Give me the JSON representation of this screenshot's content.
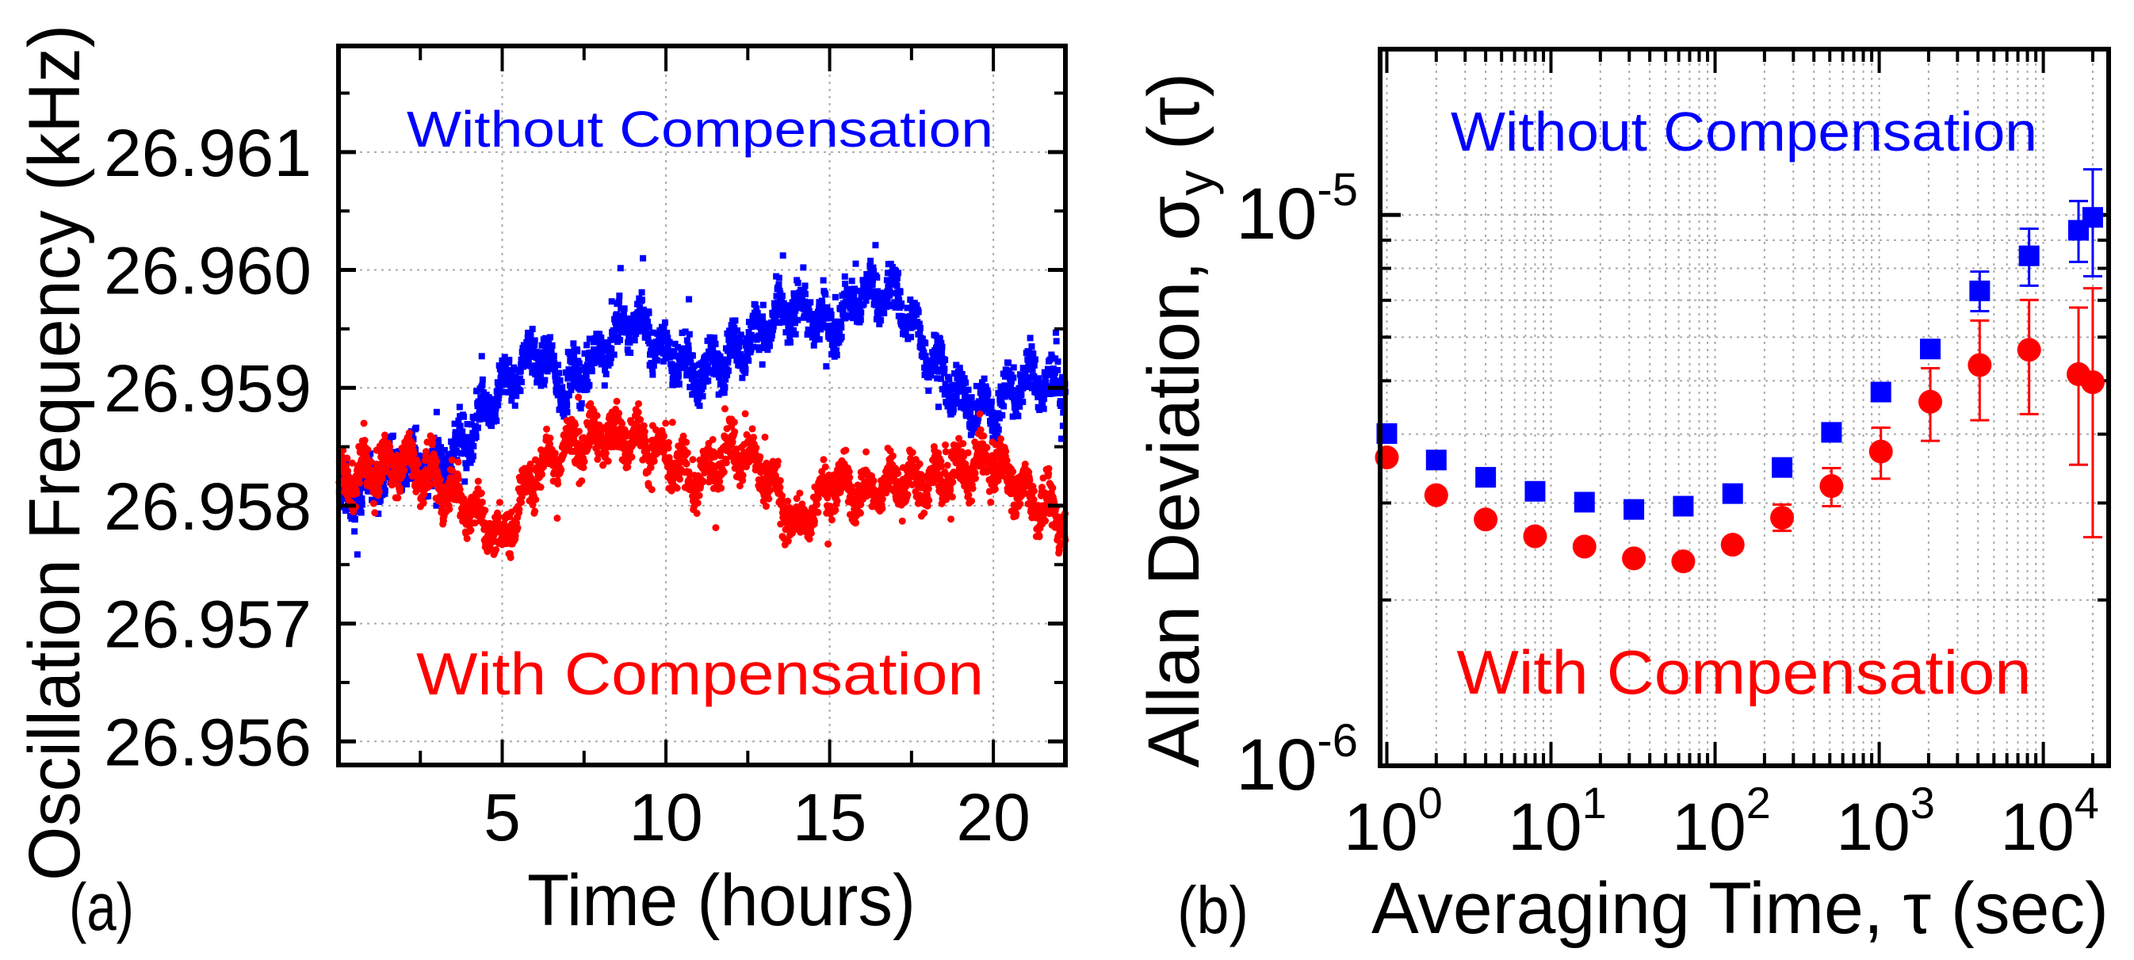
{
  "colors": {
    "without": "#0000ff",
    "with": "#ff0000",
    "axis": "#000000"
  },
  "chart_data": [
    {
      "type": "scatter",
      "panel_label": "(a)",
      "xlabel": "Time (hours)",
      "ylabel": "Oscillation Frequency (kHz)",
      "xlim": [
        0,
        22.2
      ],
      "ylim": [
        26.9558,
        26.9619
      ],
      "xticks": [
        5,
        10,
        15,
        20
      ],
      "xtick_labels": [
        "5",
        "10",
        "15",
        "20"
      ],
      "yticks": [
        26.956,
        26.957,
        26.958,
        26.959,
        26.96,
        26.961
      ],
      "ytick_labels": [
        "26.956",
        "26.957",
        "26.958",
        "26.959",
        "26.960",
        "26.961"
      ],
      "grid": true,
      "annotations": {
        "without": "Without Compensation",
        "with": "With Compensation"
      },
      "noise_amplitude_khz": 0.0004,
      "series": [
        {
          "name": "Without Compensation",
          "marker": "square",
          "hours": [
            0,
            1,
            2,
            3,
            4,
            5,
            6,
            7,
            8,
            9,
            10,
            11,
            12,
            13,
            14,
            15,
            16,
            17,
            18,
            19,
            20,
            21,
            22
          ],
          "mean_khz": [
            26.958,
            26.9582,
            26.9584,
            26.9583,
            26.9586,
            26.959,
            26.9593,
            26.959,
            26.9593,
            26.9596,
            26.9593,
            26.9591,
            26.9593,
            26.9595,
            26.9597,
            26.9595,
            26.9598,
            26.9598,
            26.9593,
            26.9589,
            26.9588,
            26.9591,
            26.959
          ]
        },
        {
          "name": "With Compensation",
          "marker": "circle",
          "hours": [
            0,
            1,
            2,
            3,
            4,
            5,
            6,
            7,
            8,
            9,
            10,
            11,
            12,
            13,
            14,
            15,
            16,
            17,
            18,
            19,
            20,
            21,
            22
          ],
          "mean_khz": [
            26.9582,
            26.9583,
            26.9584,
            26.9582,
            26.958,
            26.9577,
            26.9583,
            26.9585,
            26.9586,
            26.9586,
            26.9584,
            26.9582,
            26.9585,
            26.9583,
            26.9578,
            26.9582,
            26.9581,
            26.9582,
            26.9582,
            26.9583,
            26.9584,
            26.9581,
            26.9579
          ]
        }
      ]
    },
    {
      "type": "scatter",
      "panel_label": "(b)",
      "xlabel": "Averaging Time, τ (sec)",
      "ylabel": "Allan Deviation, σy (τ)",
      "ylabel_parts": {
        "main": "Allan Deviation, σ",
        "sub": "y",
        "tail": " (τ)"
      },
      "xscale": "log",
      "yscale": "log",
      "xlim": [
        0.91,
        25000
      ],
      "ylim": [
        1e-06,
        2e-05
      ],
      "xticks": [
        1,
        10,
        100,
        1000,
        10000
      ],
      "xtick_labels": [
        {
          "base": "10",
          "exp": "0"
        },
        {
          "base": "10",
          "exp": "1"
        },
        {
          "base": "10",
          "exp": "2"
        },
        {
          "base": "10",
          "exp": "3"
        },
        {
          "base": "10",
          "exp": "4"
        }
      ],
      "yticks": [
        1e-06,
        1e-05
      ],
      "ytick_labels": [
        {
          "base": "10",
          "exp": "-6"
        },
        {
          "base": "10",
          "exp": "-5"
        }
      ],
      "grid": true,
      "annotations": {
        "without": "Without Compensation",
        "with": "With Compensation"
      },
      "x": [
        1,
        2,
        4,
        8,
        16,
        32,
        64,
        128,
        256,
        512,
        1024,
        2048,
        4096,
        8192,
        16384,
        20000
      ],
      "series": [
        {
          "name": "Without Compensation",
          "marker": "square",
          "values": [
            4.01e-06,
            3.59e-06,
            3.34e-06,
            3.15e-06,
            3.01e-06,
            2.92e-06,
            2.96e-06,
            3.12e-06,
            3.48e-06,
            4.03e-06,
            4.77e-06,
            5.71e-06,
            7.28e-06,
            8.43e-06,
            9.38e-06,
            9.9e-06
          ],
          "err_low": [
            null,
            null,
            null,
            null,
            null,
            null,
            null,
            null,
            null,
            null,
            null,
            null,
            6.69e-06,
            7.44e-06,
            8.22e-06,
            7.74e-06
          ],
          "err_high": [
            null,
            null,
            null,
            null,
            null,
            null,
            null,
            null,
            null,
            null,
            null,
            null,
            7.89e-06,
            9.44e-06,
            1.06e-05,
            1.21e-05
          ]
        },
        {
          "name": "With Compensation",
          "marker": "circle",
          "values": [
            3.63e-06,
            3.1e-06,
            2.8e-06,
            2.61e-06,
            2.5e-06,
            2.38e-06,
            2.35e-06,
            2.52e-06,
            2.82e-06,
            3.22e-06,
            3.72e-06,
            4.58e-06,
            5.34e-06,
            5.69e-06,
            5.14e-06,
            4.97e-06
          ],
          "err_low": [
            null,
            null,
            null,
            null,
            null,
            null,
            null,
            null,
            2.67e-06,
            2.96e-06,
            3.32e-06,
            3.89e-06,
            4.24e-06,
            4.35e-06,
            3.52e-06,
            2.6e-06
          ],
          "err_high": [
            null,
            null,
            null,
            null,
            null,
            null,
            null,
            null,
            2.98e-06,
            3.47e-06,
            4.11e-06,
            5.27e-06,
            6.43e-06,
            7.01e-06,
            6.79e-06,
            7.36e-06
          ]
        }
      ]
    }
  ]
}
